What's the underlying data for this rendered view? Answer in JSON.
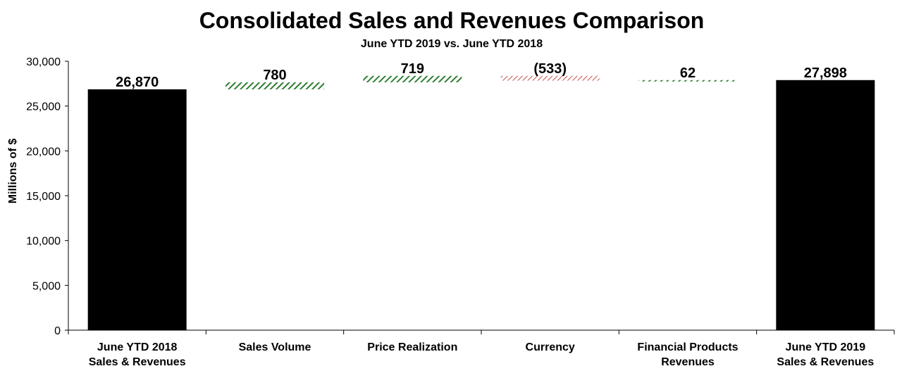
{
  "chart_data": {
    "type": "bar",
    "subtype": "waterfall",
    "title": "Consolidated Sales and Revenues Comparison",
    "subtitle": "June YTD 2019 vs. June YTD 2018",
    "ylabel": "Millions of $",
    "xlabel": "",
    "ylim": [
      0,
      30000
    ],
    "yticks": [
      0,
      5000,
      10000,
      15000,
      20000,
      25000,
      30000
    ],
    "ytick_labels": [
      "0",
      "5,000",
      "10,000",
      "15,000",
      "20,000",
      "25,000",
      "30,000"
    ],
    "grid": false,
    "categories": [
      [
        "June YTD 2018",
        "Sales & Revenues"
      ],
      [
        "Sales Volume"
      ],
      [
        "Price Realization"
      ],
      [
        "Currency"
      ],
      [
        "Financial Products",
        "Revenues"
      ],
      [
        "June YTD 2019",
        "Sales & Revenues"
      ]
    ],
    "bars": [
      {
        "kind": "total",
        "start": 0,
        "end": 26870,
        "label": "26,870",
        "color": "#000000"
      },
      {
        "kind": "increase",
        "start": 26870,
        "end": 27650,
        "label": "780",
        "color": "#2e7d32"
      },
      {
        "kind": "increase",
        "start": 27650,
        "end": 28369,
        "label": "719",
        "color": "#2e7d32"
      },
      {
        "kind": "decrease",
        "start": 28369,
        "end": 27836,
        "label": "(533)",
        "color": "#c0504d"
      },
      {
        "kind": "increase",
        "start": 27836,
        "end": 27898,
        "label": "62",
        "color": "#2e7d32"
      },
      {
        "kind": "total",
        "start": 0,
        "end": 27898,
        "label": "27,898",
        "color": "#000000"
      }
    ]
  }
}
